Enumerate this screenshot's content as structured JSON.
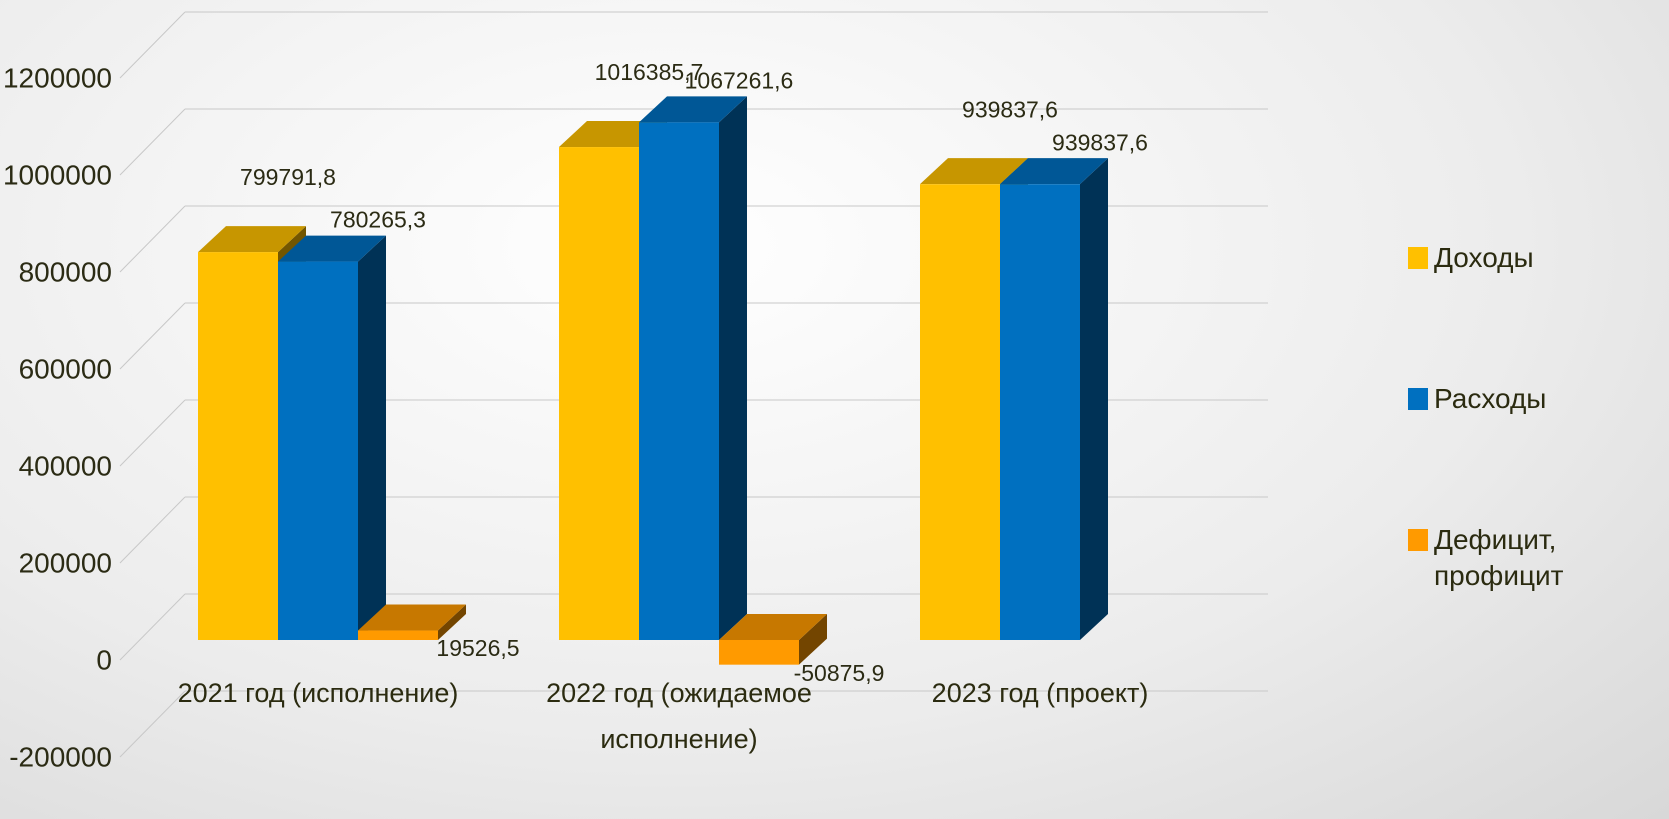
{
  "chart_data": {
    "type": "bar3d",
    "categories": [
      "2021 год (исполнение)",
      "2022 год (ожидаемое исполнение)",
      "2023 год (проект)"
    ],
    "series": [
      {
        "name": "Доходы",
        "color": "#ffc000",
        "values": [
          799791.8,
          1016385.7,
          939837.6
        ],
        "value_labels": [
          "799791,8",
          "1016385,7",
          "939837,6"
        ]
      },
      {
        "name": "Расходы",
        "color": "#0070c0",
        "values": [
          780265.3,
          1067261.6,
          939837.6
        ],
        "value_labels": [
          "780265,3",
          "1067261,6",
          "939837,6"
        ]
      },
      {
        "name": "Дефицит, профицит",
        "color": "#ff9a00",
        "values": [
          19526.5,
          -50875.9,
          null
        ],
        "value_labels": [
          "19526,5",
          "-50875,9",
          null
        ]
      }
    ],
    "ylim": [
      -200000,
      1200000
    ],
    "yticks": [
      -200000,
      0,
      200000,
      400000,
      600000,
      800000,
      1000000,
      1200000
    ],
    "grid": true,
    "legend": "right"
  }
}
